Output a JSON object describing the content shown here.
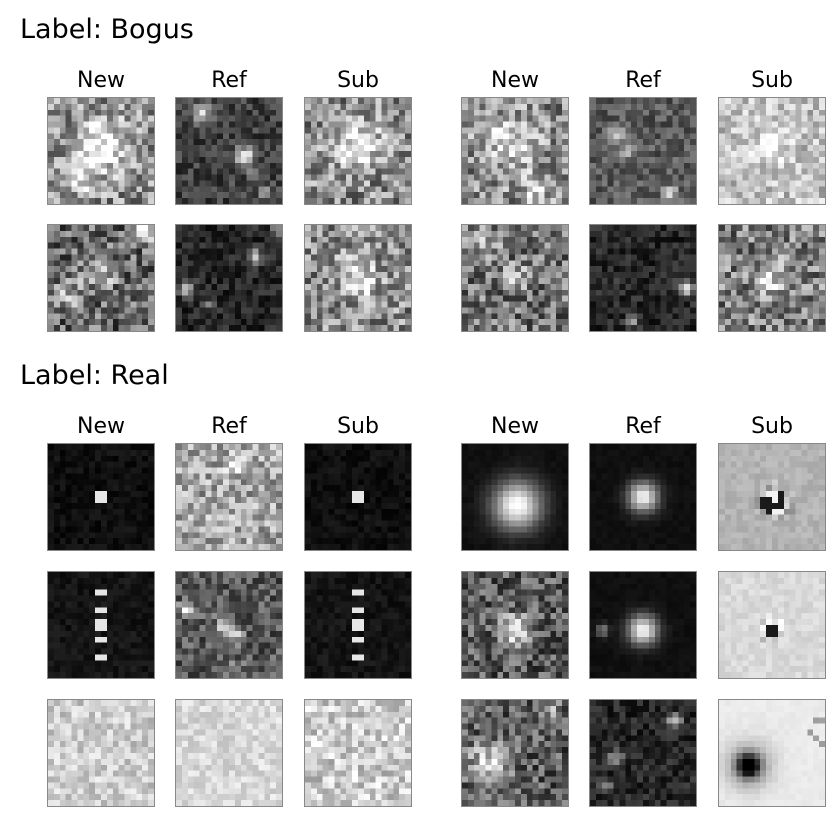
{
  "sections": [
    {
      "title": "Label: Bogus",
      "groups": [
        {
          "columns": [
            "New",
            "Ref",
            "Sub"
          ]
        },
        {
          "columns": [
            "New",
            "Ref",
            "Sub"
          ]
        }
      ]
    },
    {
      "title": "Label: Real",
      "groups": [
        {
          "columns": [
            "New",
            "Ref",
            "Sub"
          ]
        },
        {
          "columns": [
            "New",
            "Ref",
            "Sub"
          ]
        }
      ]
    }
  ]
}
